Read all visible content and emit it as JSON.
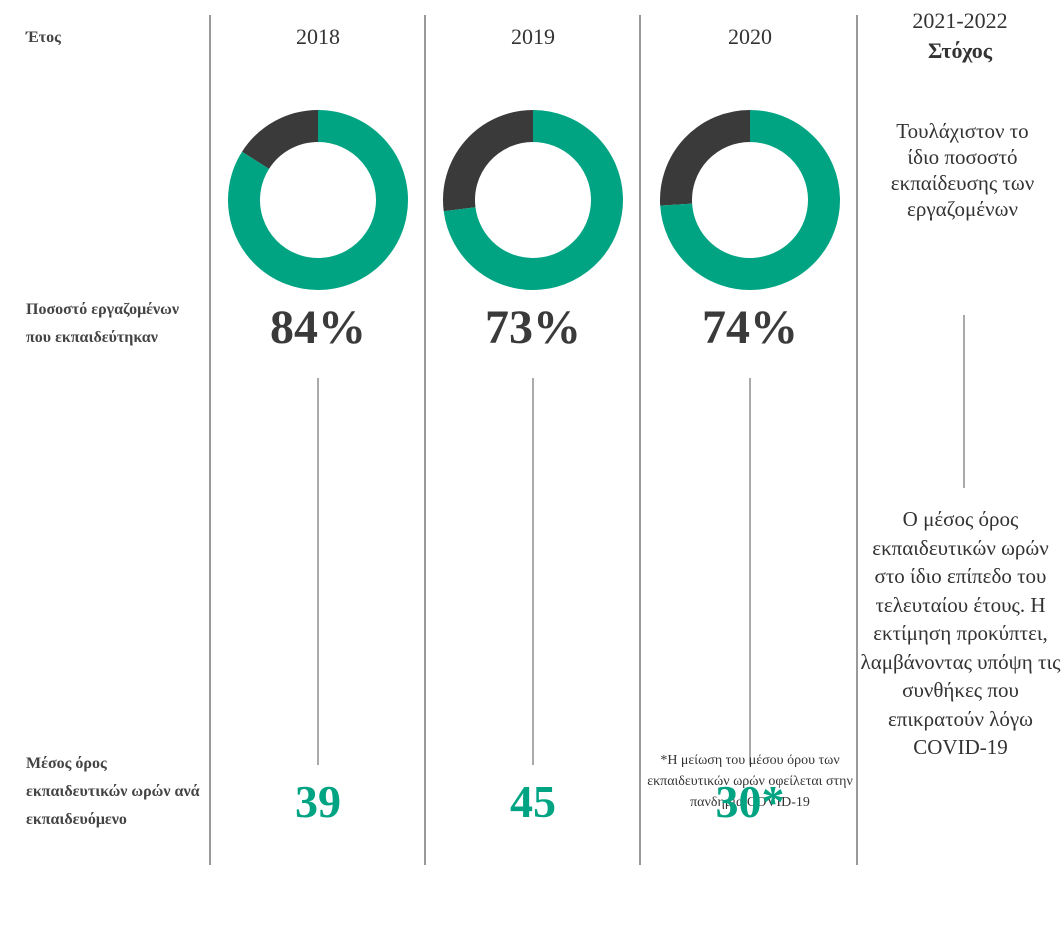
{
  "row_labels": [
    "Έτος",
    "Ποσοστό εργαζομένων που εκπαιδεύτηκαν",
    "Μέσος όρος εκπαιδευτικών ωρών ανά εκπαιδευόμενο"
  ],
  "years": [
    "2018",
    "2019",
    "2020"
  ],
  "trained_pct": {
    "values": [
      84,
      73,
      74
    ],
    "value_labels": [
      "84%",
      "73%",
      "74%"
    ],
    "color": "#00a482",
    "rest_color": "#3a3a3a"
  },
  "avg_hours": {
    "values": [
      39,
      45,
      30
    ],
    "value_labels": [
      "39",
      "45",
      "30*"
    ],
    "color": "#00a482"
  },
  "target": {
    "period": "2021-2022",
    "title": "Στόχος",
    "trained_text": "Τουλάχιστον το ίδιο ποσοστό εκπαίδευσης των εργαζομένων",
    "hours_text": "Ο μέσος όρος εκπαιδευτικών ωρών στο ίδιο επίπεδο του τελευταίου έτους. Η εκτίμηση προκύπτει, λαμβάνοντας υπόψη τις συνθήκες που επικρατούν λόγω COVID-19"
  },
  "footnote": "*Η μείωση του μέσου όρου των εκπαιδευτικών ωρών οφείλεται στην πανδημία COVID-19"
}
